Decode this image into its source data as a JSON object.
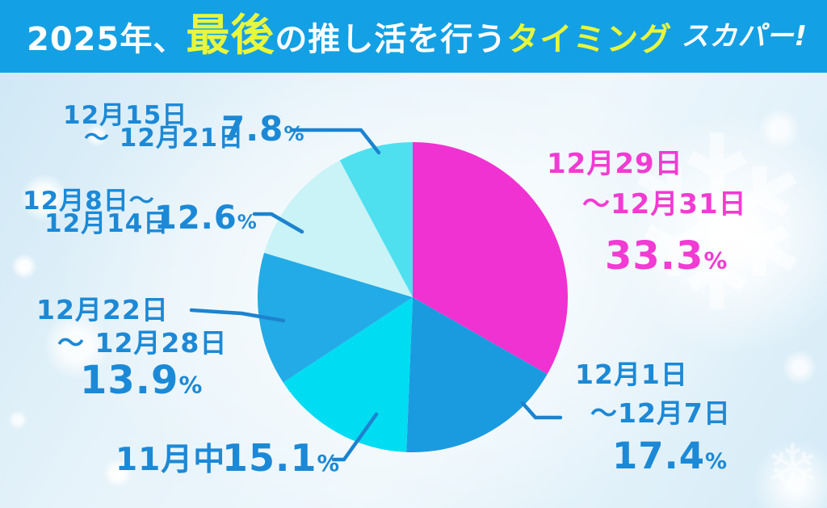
{
  "header": {
    "title_prefix": "2025年、",
    "title_highlight1": "最後",
    "title_mid": "の推し活を行う",
    "title_highlight2": "タイミング",
    "logo_text": "スカパー!"
  },
  "colors": {
    "header_bg": "#14a0e4",
    "title_yellow": "#e7f63e",
    "label_blue": "#1c89d6",
    "label_magenta": "#f13bd3",
    "leader_line": "#1d83cf"
  },
  "chart_data": {
    "type": "pie",
    "title": "2025年、最後の推し活を行うタイミング",
    "unit": "%",
    "start_angle_deg": 0,
    "direction": "clockwise",
    "legend": "none",
    "slices": [
      {
        "key": "dec29-31",
        "label": "12月29日〜12月31日",
        "value": 33.3,
        "color": "#f032d2"
      },
      {
        "key": "dec1-7",
        "label": "12月1日〜12月7日",
        "value": 17.4,
        "color": "#1b9bdf"
      },
      {
        "key": "nov",
        "label": "11月中",
        "value": 15.1,
        "color": "#00dcf2"
      },
      {
        "key": "dec22-28",
        "label": "12月22日〜12月28日",
        "value": 13.9,
        "color": "#22abe6"
      },
      {
        "key": "dec8-14",
        "label": "12月8日〜12月14日",
        "value": 12.6,
        "color": "#c9f3f6"
      },
      {
        "key": "dec15-21",
        "label": "12月15日〜12月21日",
        "value": 7.8,
        "color": "#4fe0ef"
      }
    ]
  },
  "callouts": {
    "dec15_21": {
      "line1": "12月15日",
      "line2": "〜 12月21日",
      "pct_num": "7.8",
      "pct_sign": "%"
    },
    "dec8_14": {
      "line1": "12月8日〜",
      "line2": "12月14日",
      "pct_num": "12.6",
      "pct_sign": "%"
    },
    "dec22_28": {
      "line1": "12月22日",
      "line2": "〜 12月28日",
      "pct_num": "13.9",
      "pct_sign": "%"
    },
    "nov": {
      "line1": "11月中",
      "pct_num": "15.1",
      "pct_sign": "%"
    },
    "dec29_31": {
      "line1": "12月29日",
      "line2": "〜12月31日",
      "pct_num": "33.3",
      "pct_sign": "%"
    },
    "dec1_7": {
      "line1": "12月1日",
      "line2": "〜12月7日",
      "pct_num": "17.4",
      "pct_sign": "%"
    }
  },
  "decorations": {
    "snowflake_glyph": "❄"
  }
}
